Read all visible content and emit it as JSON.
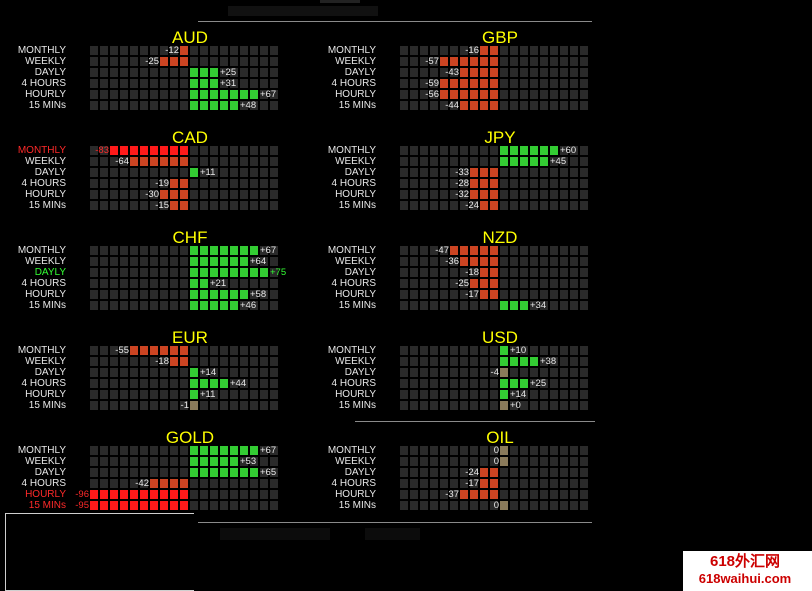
{
  "row_labels": [
    "MONTHLY",
    "WEEKLY",
    "DAYLY",
    "4 HOURS",
    "HOURLY",
    "15 MINs"
  ],
  "colors": {
    "positive": "#33cc33",
    "negative": "#cc4422",
    "strong_negative": "#ff1a1a",
    "neutral": "#8a7a5a",
    "title": "#ffff00",
    "grid_cell": "#2a2a2a"
  },
  "panels": [
    {
      "name": "AUD",
      "values": [
        -12,
        -25,
        25,
        31,
        67,
        48
      ],
      "labels": [
        "-12",
        "-25",
        "+25",
        "+31",
        "+67",
        "+48"
      ]
    },
    {
      "name": "GBP",
      "values": [
        -16,
        -57,
        -43,
        -59,
        -56,
        -44
      ],
      "labels": [
        "-16",
        "-57",
        "-43",
        "-59",
        "-56",
        "-44"
      ]
    },
    {
      "name": "CAD",
      "values": [
        -83,
        -64,
        11,
        -19,
        -30,
        -15
      ],
      "labels": [
        "-83",
        "-64",
        "+11",
        "-19",
        "-30",
        "-15"
      ],
      "highlight_row": 0,
      "highlight_color": "red"
    },
    {
      "name": "JPY",
      "values": [
        60,
        45,
        -33,
        -28,
        -32,
        -24
      ],
      "labels": [
        "+60",
        "+45",
        "-33",
        "-28",
        "-32",
        "-24"
      ]
    },
    {
      "name": "CHF",
      "values": [
        67,
        64,
        75,
        21,
        58,
        46
      ],
      "labels": [
        "+67",
        "+64",
        "+75",
        "+21",
        "+58",
        "+46"
      ],
      "highlight_row": 2,
      "highlight_color": "green"
    },
    {
      "name": "NZD",
      "values": [
        -47,
        -36,
        -18,
        -25,
        -17,
        34
      ],
      "labels": [
        "-47",
        "-36",
        "-18",
        "-25",
        "-17",
        "+34"
      ]
    },
    {
      "name": "EUR",
      "values": [
        -55,
        -18,
        14,
        44,
        11,
        -1
      ],
      "labels": [
        "-55",
        "-18",
        "+14",
        "+44",
        "+11",
        "-1"
      ]
    },
    {
      "name": "USD",
      "values": [
        10,
        38,
        -4,
        25,
        14,
        0
      ],
      "labels": [
        "+10",
        "+38",
        "-4",
        "+25",
        "+14",
        "+0"
      ]
    },
    {
      "name": "GOLD",
      "values": [
        67,
        53,
        65,
        -42,
        -96,
        -95
      ],
      "labels": [
        "+67",
        "+53",
        "+65",
        "-42",
        "-96",
        "-95"
      ],
      "highlight_rows": [
        4,
        5
      ],
      "highlight_color": "red"
    },
    {
      "name": "OIL",
      "values": [
        0,
        0,
        -24,
        -17,
        -37,
        0
      ],
      "labels": [
        "0",
        "0",
        "-24",
        "-17",
        "-37",
        "0"
      ]
    }
  ],
  "watermark": {
    "line1": "618外汇网",
    "line2": "618waihui.com"
  }
}
